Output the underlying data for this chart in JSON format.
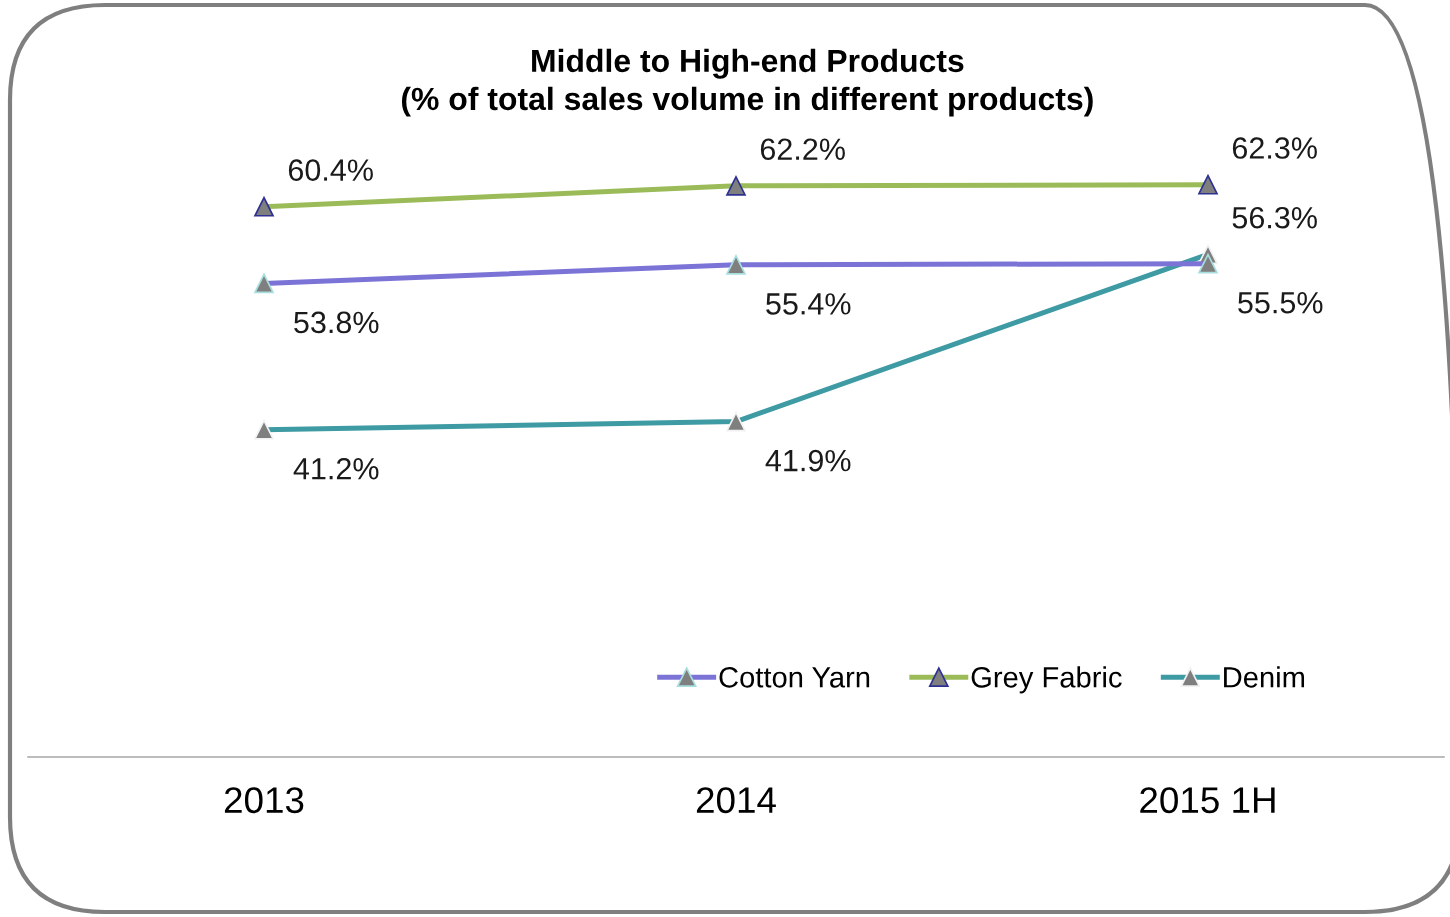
{
  "chart_data": {
    "type": "line",
    "title": "Middle to High-end Products\n(% of total sales volume in different products)",
    "categories": [
      "2013",
      "2014",
      "2015 1H"
    ],
    "series": [
      {
        "name": "Cotton Yarn",
        "color": "#7b74d6",
        "values": [
          53.8,
          55.4,
          55.5
        ],
        "value_labels": [
          "53.8%",
          "55.4%",
          "55.5%"
        ]
      },
      {
        "name": "Grey Fabric",
        "color": "#9bbb59",
        "values": [
          60.4,
          62.2,
          62.3
        ],
        "value_labels": [
          "60.4%",
          "62.2%",
          "62.3%"
        ]
      },
      {
        "name": "Denim",
        "color": "#3e9aa3",
        "values": [
          41.2,
          41.9,
          56.3
        ],
        "value_labels": [
          "41.2%",
          "41.9%",
          "56.3%"
        ]
      }
    ],
    "tick_labels": "x",
    "grid": false,
    "legend": "bottom right",
    "marker": "triangle",
    "line_style": "solid"
  }
}
